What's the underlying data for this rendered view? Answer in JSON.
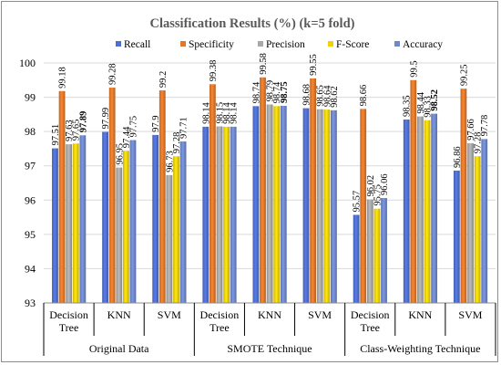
{
  "chart_data": {
    "type": "bar",
    "title": "Classification Results (%) (k=5 fold)",
    "xlabel": "",
    "ylabel": "",
    "ylim": [
      93,
      100
    ],
    "yticks": [
      "93",
      "94",
      "95",
      "96",
      "97",
      "98",
      "99",
      "100"
    ],
    "grid": true,
    "legend_position": "top",
    "groups": [
      "Original Data",
      "SMOTE Technique",
      "Class-Weighting Technique"
    ],
    "categories": [
      "Decision Tree",
      "KNN",
      "SVM",
      "Decision Tree",
      "KNN",
      "SVM",
      "Decision Tree",
      "KNN",
      "SVM"
    ],
    "series": [
      {
        "name": "Recall",
        "color": "#4f6fd0",
        "values": [
          97.51,
          97.99,
          97.9,
          98.14,
          98.74,
          98.68,
          95.57,
          98.35,
          96.86
        ],
        "labels": [
          "97.51",
          "97.99",
          "97.9",
          "98.14",
          "98.74",
          "98.68",
          "95.57",
          "98.35",
          "96.86"
        ],
        "bold": [
          false,
          false,
          false,
          false,
          false,
          false,
          false,
          false,
          false
        ]
      },
      {
        "name": "Specificity",
        "color": "#e0782a",
        "values": [
          99.18,
          99.28,
          99.2,
          99.38,
          99.58,
          99.55,
          98.66,
          99.5,
          99.25
        ],
        "labels": [
          "99.18",
          "99.28",
          "99.2",
          "99.38",
          "99.58",
          "99.55",
          "98.66",
          "99.5",
          "99.25"
        ],
        "bold": [
          false,
          false,
          false,
          false,
          false,
          false,
          false,
          false,
          false
        ]
      },
      {
        "name": "Precision",
        "color": "#a8a8a8",
        "values": [
          97.63,
          96.95,
          96.73,
          98.15,
          98.79,
          98.65,
          96.02,
          98.44,
          97.66
        ],
        "labels": [
          "97.63",
          "96.95",
          "96.73",
          "98.15",
          "98.79",
          "98.65",
          "96.02",
          "98.44",
          "97.66"
        ],
        "bold": [
          false,
          false,
          false,
          false,
          false,
          false,
          false,
          false,
          false
        ]
      },
      {
        "name": "F-Score",
        "color": "#f2d10a",
        "values": [
          97.65,
          97.44,
          97.28,
          98.14,
          98.74,
          98.64,
          95.75,
          98.33,
          97.28
        ],
        "labels": [
          "97.65",
          "97.44",
          "97.28",
          "98.14",
          "98.74",
          "98.64",
          "95.75",
          "98.33",
          "97.28"
        ],
        "bold": [
          false,
          false,
          false,
          false,
          false,
          false,
          false,
          false,
          false
        ]
      },
      {
        "name": "Accuracy",
        "color": "#6f88cc",
        "values": [
          97.89,
          97.75,
          97.71,
          98.14,
          98.75,
          98.62,
          96.06,
          98.52,
          97.78
        ],
        "labels": [
          "97.89",
          "97.75",
          "97.71",
          "98.14",
          "98.75",
          "98.62",
          "96.06",
          "98.52",
          "97.78"
        ],
        "bold": [
          true,
          false,
          false,
          false,
          true,
          false,
          false,
          true,
          false
        ]
      }
    ]
  }
}
